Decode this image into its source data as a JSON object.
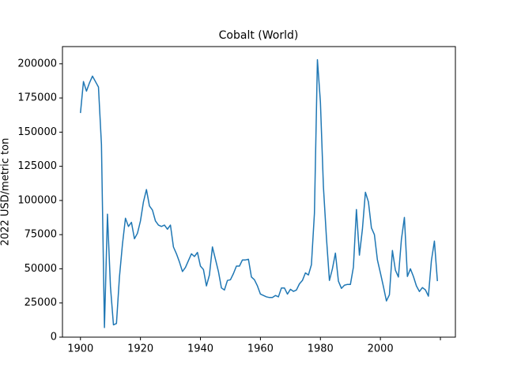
{
  "chart_data": {
    "type": "line",
    "title": "Cobalt (World)",
    "ylabel": "2022 USD/metric ton",
    "color": "#1f77b4",
    "x": [
      1900,
      1901,
      1902,
      1903,
      1904,
      1905,
      1906,
      1907,
      1908,
      1909,
      1910,
      1911,
      1912,
      1913,
      1914,
      1915,
      1916,
      1917,
      1918,
      1919,
      1920,
      1921,
      1922,
      1923,
      1924,
      1925,
      1926,
      1927,
      1928,
      1929,
      1930,
      1931,
      1932,
      1933,
      1934,
      1935,
      1936,
      1937,
      1938,
      1939,
      1940,
      1941,
      1942,
      1943,
      1944,
      1945,
      1946,
      1947,
      1948,
      1949,
      1950,
      1951,
      1952,
      1953,
      1954,
      1955,
      1956,
      1957,
      1958,
      1959,
      1960,
      1961,
      1962,
      1963,
      1964,
      1965,
      1966,
      1967,
      1968,
      1969,
      1970,
      1971,
      1972,
      1973,
      1974,
      1975,
      1976,
      1977,
      1978,
      1979,
      1980,
      1981,
      1982,
      1983,
      1984,
      1985,
      1986,
      1987,
      1988,
      1989,
      1990,
      1991,
      1992,
      1993,
      1994,
      1995,
      1996,
      1997,
      1998,
      1999,
      2000,
      2001,
      2002,
      2003,
      2004,
      2005,
      2006,
      2007,
      2008,
      2009,
      2010,
      2011,
      2012,
      2013,
      2014,
      2015,
      2016,
      2017,
      2018,
      2019
    ],
    "values": [
      164000,
      187000,
      180000,
      186000,
      191000,
      187000,
      183000,
      141000,
      7000,
      90000,
      37000,
      9000,
      10000,
      44000,
      68000,
      87000,
      81000,
      84000,
      72000,
      76000,
      85000,
      99000,
      108000,
      96000,
      93000,
      85000,
      82000,
      81000,
      82000,
      79000,
      82000,
      66000,
      61000,
      55000,
      48000,
      51000,
      56000,
      61000,
      59000,
      62000,
      52000,
      49500,
      37500,
      45500,
      66000,
      57000,
      48000,
      36000,
      34500,
      41500,
      42000,
      46500,
      52000,
      52000,
      56500,
      56500,
      57000,
      44000,
      42000,
      37500,
      31500,
      30500,
      29500,
      29000,
      29000,
      30500,
      29500,
      36000,
      36000,
      31500,
      35000,
      33500,
      34500,
      39000,
      41500,
      47000,
      45500,
      53000,
      90500,
      203000,
      172000,
      110000,
      73000,
      41500,
      50000,
      61500,
      41000,
      35700,
      38000,
      38600,
      38600,
      51300,
      93400,
      60000,
      79000,
      106000,
      99000,
      80000,
      75000,
      56500,
      47000,
      37000,
      26500,
      31000,
      63400,
      49000,
      44000,
      71500,
      87600,
      44400,
      50000,
      44400,
      37500,
      33400,
      36300,
      34600,
      30000,
      56000,
      70300,
      41000
    ],
    "xlim": [
      1894,
      2025
    ],
    "ylim": [
      0,
      212600
    ],
    "xticks": [
      1900,
      1920,
      1940,
      1960,
      1980,
      2000,
      {
        "value": 2020,
        "label": null
      }
    ],
    "yticks": [
      0,
      25000,
      50000,
      75000,
      100000,
      125000,
      150000,
      175000,
      200000
    ]
  }
}
